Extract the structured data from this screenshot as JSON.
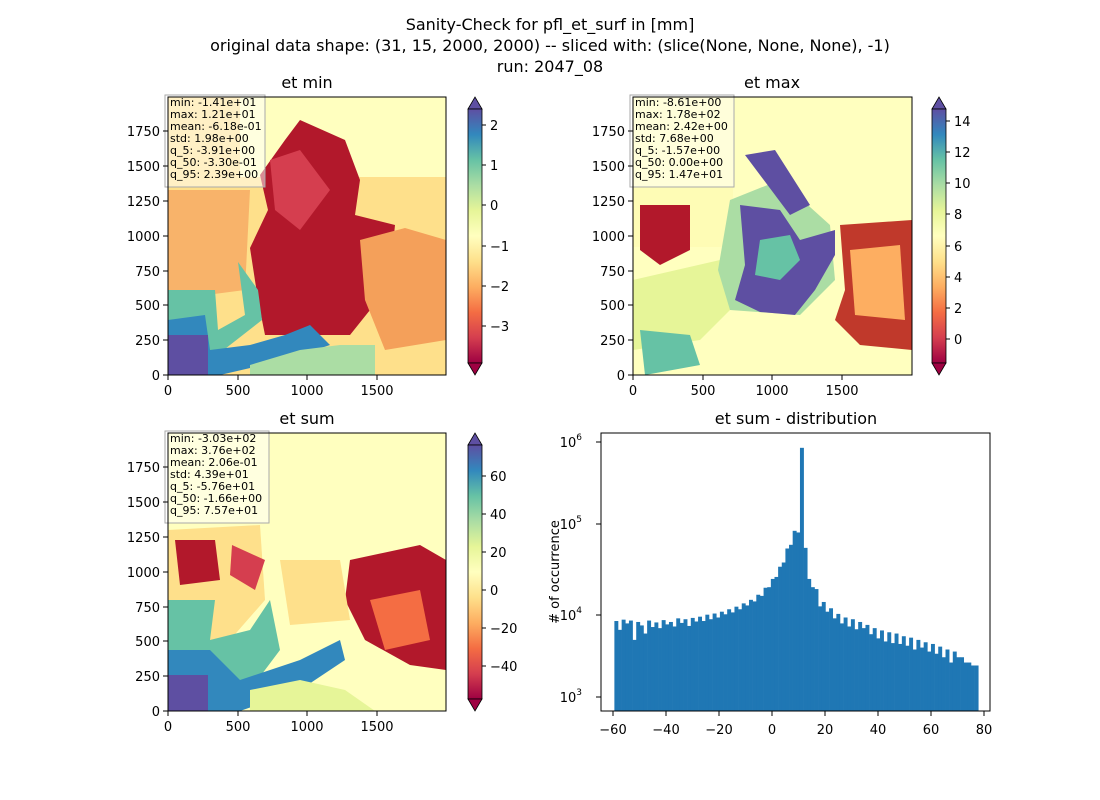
{
  "figure": {
    "title_lines": [
      "Sanity-Check for pfl_et_surf in [mm]",
      "original data shape: (31, 15, 2000, 2000) -- sliced with: (slice(None, None, None), -1)",
      "run: 2047_08"
    ]
  },
  "colors": {
    "hist_bar": "#1f77b4",
    "colormap_spectral": [
      "#9e0142",
      "#d53e4f",
      "#f46d43",
      "#fdae61",
      "#fee08b",
      "#ffffbf",
      "#e6f598",
      "#abdda4",
      "#66c2a5",
      "#3288bd",
      "#5e4fa2"
    ]
  },
  "chart_data": [
    {
      "type": "heatmap",
      "id": "et_min",
      "title": "et min",
      "colormap": "Spectral",
      "xlim": [
        0,
        2000
      ],
      "ylim": [
        0,
        2000
      ],
      "x_ticks": [
        "0",
        "500",
        "1000",
        "1500"
      ],
      "y_ticks": [
        "0",
        "250",
        "500",
        "750",
        "1000",
        "1250",
        "1500",
        "1750"
      ],
      "colorbar": {
        "min": -3.91,
        "max": 2.39,
        "extend": "both",
        "ticks": [
          "2",
          "1",
          "0",
          "−1",
          "−2",
          "−3"
        ]
      },
      "stats": [
        "min: -1.41e+01",
        "max: 1.21e+01",
        "mean: -6.18e-01",
        "std: 1.98e+00",
        "q_5: -3.91e+00",
        "q_50: -3.30e-01",
        "q_95: 2.39e+00"
      ]
    },
    {
      "type": "heatmap",
      "id": "et_max",
      "title": "et max",
      "colormap": "Spectral",
      "xlim": [
        0,
        2000
      ],
      "ylim": [
        0,
        2000
      ],
      "x_ticks": [
        "0",
        "500",
        "1000",
        "1500"
      ],
      "y_ticks": [
        "0",
        "250",
        "500",
        "750",
        "1000",
        "1250",
        "1500",
        "1750"
      ],
      "colorbar": {
        "min": -1.57,
        "max": 14.7,
        "extend": "both",
        "ticks": [
          "14",
          "12",
          "10",
          "8",
          "6",
          "4",
          "2",
          "0"
        ]
      },
      "stats": [
        "min: -8.61e+00",
        "max: 1.78e+02",
        "mean: 2.42e+00",
        "std: 7.68e+00",
        "q_5: -1.57e+00",
        "q_50: 0.00e+00",
        "q_95: 1.47e+01"
      ]
    },
    {
      "type": "heatmap",
      "id": "et_sum",
      "title": "et sum",
      "colormap": "Spectral",
      "xlim": [
        0,
        2000
      ],
      "ylim": [
        0,
        2000
      ],
      "x_ticks": [
        "0",
        "500",
        "1000",
        "1500"
      ],
      "y_ticks": [
        "0",
        "250",
        "500",
        "750",
        "1000",
        "1250",
        "1500",
        "1750"
      ],
      "colorbar": {
        "min": -57.6,
        "max": 75.7,
        "extend": "both",
        "ticks": [
          "60",
          "40",
          "20",
          "0",
          "−20",
          "−40"
        ]
      },
      "stats": [
        "min: -3.03e+02",
        "max: 3.76e+02",
        "mean: 2.06e-01",
        "std: 4.39e+01",
        "q_5: -5.76e+01",
        "q_50: -1.66e+00",
        "q_95: 7.57e+01"
      ]
    },
    {
      "type": "bar",
      "id": "et_sum_distribution",
      "title": "et sum - distribution",
      "ylabel": "# of occurrence",
      "xlabel": "",
      "y_scale": "log",
      "xlim": [
        -62.5,
        80
      ],
      "ylim": [
        700,
        1300000
      ],
      "x_ticks": [
        "−60",
        "−40",
        "−20",
        "0",
        "20",
        "40",
        "60",
        "80"
      ],
      "y_ticks": [
        "10",
        "10",
        "10",
        "10"
      ],
      "y_tick_exponents": [
        "3",
        "4",
        "5",
        "6"
      ],
      "bins": {
        "start": -57.6,
        "end": 75.7,
        "count": 100
      },
      "counts": [
        8000,
        6300,
        8300,
        7500,
        8100,
        4800,
        7800,
        7100,
        5700,
        8100,
        6800,
        7700,
        6600,
        8200,
        7300,
        7800,
        6900,
        8600,
        7600,
        8400,
        7000,
        8700,
        7900,
        9000,
        8000,
        9500,
        8400,
        9800,
        8800,
        10300,
        9600,
        11000,
        10100,
        11800,
        11000,
        12900,
        12200,
        14200,
        13600,
        16300,
        15800,
        19700,
        20000,
        25000,
        26400,
        34800,
        39000,
        57000,
        63000,
        92000,
        88000,
        870000,
        58000,
        25000,
        20000,
        19000,
        11900,
        13400,
        10300,
        11300,
        8600,
        9700,
        7500,
        8800,
        6900,
        8400,
        6400,
        7800,
        6600,
        7200,
        5600,
        6600,
        5000,
        6200,
        4600,
        5900,
        4400,
        5700,
        4300,
        5300,
        4100,
        5100,
        3700,
        4800,
        3900,
        4500,
        3500,
        4300,
        3300,
        4000,
        3000,
        3700,
        2600,
        3500,
        3000,
        3000,
        2600,
        2600,
        2400,
        2400
      ]
    }
  ]
}
